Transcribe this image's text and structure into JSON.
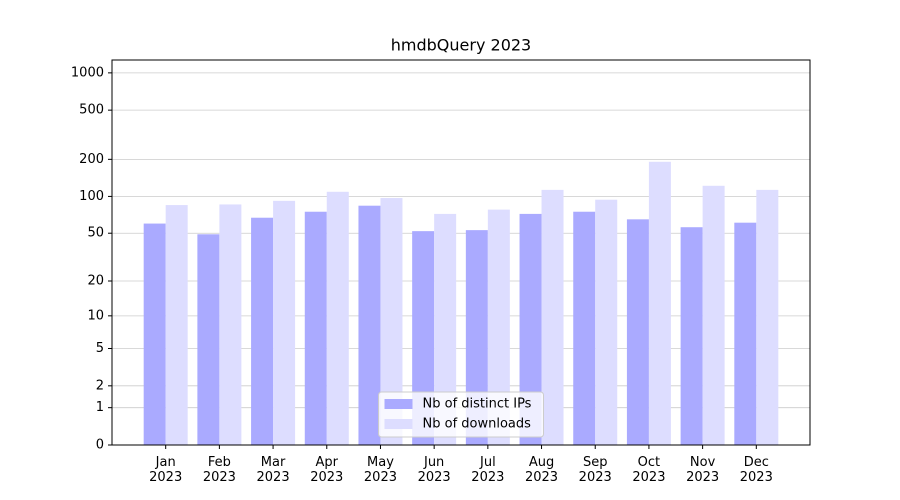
{
  "chart_data": {
    "type": "bar",
    "title": "hmdbQuery 2023",
    "categories": [
      "Jan\n2023",
      "Feb\n2023",
      "Mar\n2023",
      "Apr\n2023",
      "May\n2023",
      "Jun\n2023",
      "Jul\n2023",
      "Aug\n2023",
      "Sep\n2023",
      "Oct\n2023",
      "Nov\n2023",
      "Dec\n2023"
    ],
    "series": [
      {
        "name": "Nb of distinct IPs",
        "color": "#aaaaff",
        "values": [
          60,
          49,
          67,
          75,
          84,
          52,
          53,
          72,
          75,
          65,
          56,
          61
        ]
      },
      {
        "name": "Nb of downloads",
        "color": "#ddddff",
        "values": [
          85,
          86,
          92,
          109,
          97,
          72,
          78,
          113,
          94,
          191,
          122,
          113
        ]
      }
    ],
    "yscale": "log1p",
    "ylim": [
      0,
      1270
    ],
    "yticks": [
      0,
      1,
      2,
      5,
      10,
      20,
      50,
      100,
      200,
      500,
      1000
    ],
    "grid": true,
    "legend": "lower center"
  }
}
